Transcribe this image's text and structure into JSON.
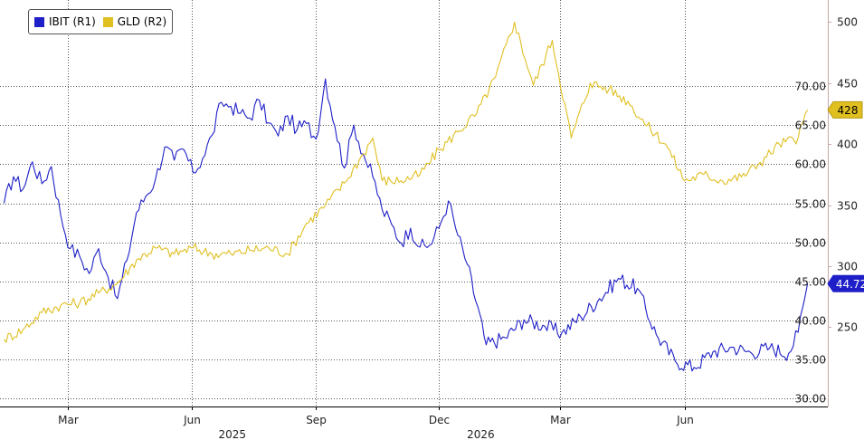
{
  "chart_data": {
    "type": "line",
    "title": "",
    "legend_position": "top-left",
    "grid": true,
    "x_ticks": [
      {
        "label": "Mar",
        "date": "2025-03-01"
      },
      {
        "label": "Jun",
        "date": "2025-06-01"
      },
      {
        "label": "Sep",
        "date": "2025-09-01"
      },
      {
        "label": "Dec",
        "date": "2025-12-01"
      },
      {
        "label": "Mar",
        "date": "2026-03-01"
      },
      {
        "label": "Jun",
        "date": "2026-06-01"
      }
    ],
    "year_labels": [
      {
        "label": "2025",
        "date": "2025-07-01"
      },
      {
        "label": "2026",
        "date": "2026-01-01"
      }
    ],
    "x_range": [
      "2025-01-10",
      "2026-09-15"
    ],
    "axis_left": {
      "ylim": [
        29,
        81
      ],
      "ticks": [
        "30.00",
        "35.00",
        "40.00",
        "45.00",
        "50.00",
        "55.00",
        "60.00",
        "65.00",
        "70.00"
      ]
    },
    "axis_right": {
      "ylim": [
        185,
        518
      ],
      "ticks": [
        "250",
        "300",
        "350",
        "400",
        "450",
        "500"
      ]
    },
    "series": [
      {
        "name": "IBIT (R1)",
        "axis": "left",
        "color": "#1f1fc8",
        "last_value": "44.72",
        "points": [
          [
            "2025-01-13",
            55.0
          ],
          [
            "2025-01-20",
            58.4
          ],
          [
            "2025-01-27",
            56.8
          ],
          [
            "2025-02-03",
            60.3
          ],
          [
            "2025-02-10",
            57.5
          ],
          [
            "2025-02-17",
            59.7
          ],
          [
            "2025-02-24",
            53.4
          ],
          [
            "2025-03-03",
            49.2
          ],
          [
            "2025-03-10",
            48.2
          ],
          [
            "2025-03-17",
            46.0
          ],
          [
            "2025-03-24",
            49.2
          ],
          [
            "2025-03-31",
            45.6
          ],
          [
            "2025-04-07",
            42.8
          ],
          [
            "2025-04-14",
            47.7
          ],
          [
            "2025-04-21",
            53.8
          ],
          [
            "2025-04-28",
            55.9
          ],
          [
            "2025-05-05",
            58.0
          ],
          [
            "2025-05-12",
            62.2
          ],
          [
            "2025-05-19",
            60.5
          ],
          [
            "2025-05-26",
            61.9
          ],
          [
            "2025-06-02",
            58.9
          ],
          [
            "2025-06-09",
            60.7
          ],
          [
            "2025-06-16",
            63.7
          ],
          [
            "2025-06-23",
            67.9
          ],
          [
            "2025-06-30",
            67.4
          ],
          [
            "2025-07-07",
            66.5
          ],
          [
            "2025-07-14",
            65.9
          ],
          [
            "2025-07-21",
            68.2
          ],
          [
            "2025-07-28",
            65.3
          ],
          [
            "2025-08-04",
            63.6
          ],
          [
            "2025-08-11",
            66.2
          ],
          [
            "2025-08-18",
            64.4
          ],
          [
            "2025-08-25",
            65.2
          ],
          [
            "2025-09-01",
            63.2
          ],
          [
            "2025-09-08",
            70.9
          ],
          [
            "2025-09-15",
            64.8
          ],
          [
            "2025-09-22",
            59.5
          ],
          [
            "2025-09-29",
            65.0
          ],
          [
            "2025-10-06",
            61.3
          ],
          [
            "2025-10-13",
            58.4
          ],
          [
            "2025-10-20",
            54.2
          ],
          [
            "2025-10-27",
            52.3
          ],
          [
            "2025-11-03",
            49.9
          ],
          [
            "2025-11-10",
            51.8
          ],
          [
            "2025-11-17",
            49.4
          ],
          [
            "2025-11-24",
            49.6
          ],
          [
            "2025-12-01",
            51.8
          ],
          [
            "2025-12-08",
            55.3
          ],
          [
            "2025-12-15",
            50.9
          ],
          [
            "2025-12-22",
            47.2
          ],
          [
            "2026-01-05",
            36.9
          ],
          [
            "2026-01-19",
            37.8
          ],
          [
            "2026-02-02",
            40.1
          ],
          [
            "2026-02-16",
            39.4
          ],
          [
            "2026-03-02",
            38.4
          ],
          [
            "2026-03-16",
            40.5
          ],
          [
            "2026-03-30",
            42.8
          ],
          [
            "2026-04-13",
            45.4
          ],
          [
            "2026-04-27",
            44.1
          ],
          [
            "2026-05-11",
            38.2
          ],
          [
            "2026-05-25",
            34.8
          ],
          [
            "2026-06-08",
            34.0
          ],
          [
            "2026-06-22",
            36.0
          ],
          [
            "2026-07-06",
            36.6
          ],
          [
            "2026-07-20",
            35.9
          ],
          [
            "2026-08-03",
            36.5
          ],
          [
            "2026-08-17",
            35.8
          ],
          [
            "2026-08-24",
            38.5
          ],
          [
            "2026-08-31",
            44.72
          ]
        ]
      },
      {
        "name": "GLD (R2)",
        "axis": "right",
        "color": "#e0bf21",
        "last_value": "428",
        "points": [
          [
            "2025-01-13",
            240
          ],
          [
            "2025-01-27",
            248
          ],
          [
            "2025-02-10",
            262
          ],
          [
            "2025-02-24",
            268
          ],
          [
            "2025-03-10",
            270
          ],
          [
            "2025-03-24",
            278
          ],
          [
            "2025-04-07",
            286
          ],
          [
            "2025-04-21",
            305
          ],
          [
            "2025-05-05",
            315
          ],
          [
            "2025-05-19",
            310
          ],
          [
            "2025-06-02",
            315
          ],
          [
            "2025-06-16",
            310
          ],
          [
            "2025-06-30",
            310
          ],
          [
            "2025-07-14",
            313
          ],
          [
            "2025-07-28",
            315
          ],
          [
            "2025-08-11",
            310
          ],
          [
            "2025-08-25",
            335
          ],
          [
            "2025-09-08",
            350
          ],
          [
            "2025-09-22",
            368
          ],
          [
            "2025-10-06",
            392
          ],
          [
            "2025-10-13",
            405
          ],
          [
            "2025-10-20",
            370
          ],
          [
            "2025-11-03",
            370
          ],
          [
            "2025-11-17",
            375
          ],
          [
            "2025-12-01",
            395
          ],
          [
            "2025-12-15",
            410
          ],
          [
            "2025-12-29",
            425
          ],
          [
            "2026-01-12",
            455
          ],
          [
            "2026-01-26",
            500
          ],
          [
            "2026-02-09",
            448
          ],
          [
            "2026-02-23",
            485
          ],
          [
            "2026-03-09",
            405
          ],
          [
            "2026-03-23",
            450
          ],
          [
            "2026-04-06",
            445
          ],
          [
            "2026-04-20",
            435
          ],
          [
            "2026-05-04",
            415
          ],
          [
            "2026-05-18",
            400
          ],
          [
            "2026-06-01",
            370
          ],
          [
            "2026-06-15",
            375
          ],
          [
            "2026-06-29",
            370
          ],
          [
            "2026-07-13",
            373
          ],
          [
            "2026-07-27",
            385
          ],
          [
            "2026-08-10",
            400
          ],
          [
            "2026-08-24",
            405
          ],
          [
            "2026-08-31",
            428
          ]
        ]
      }
    ]
  }
}
